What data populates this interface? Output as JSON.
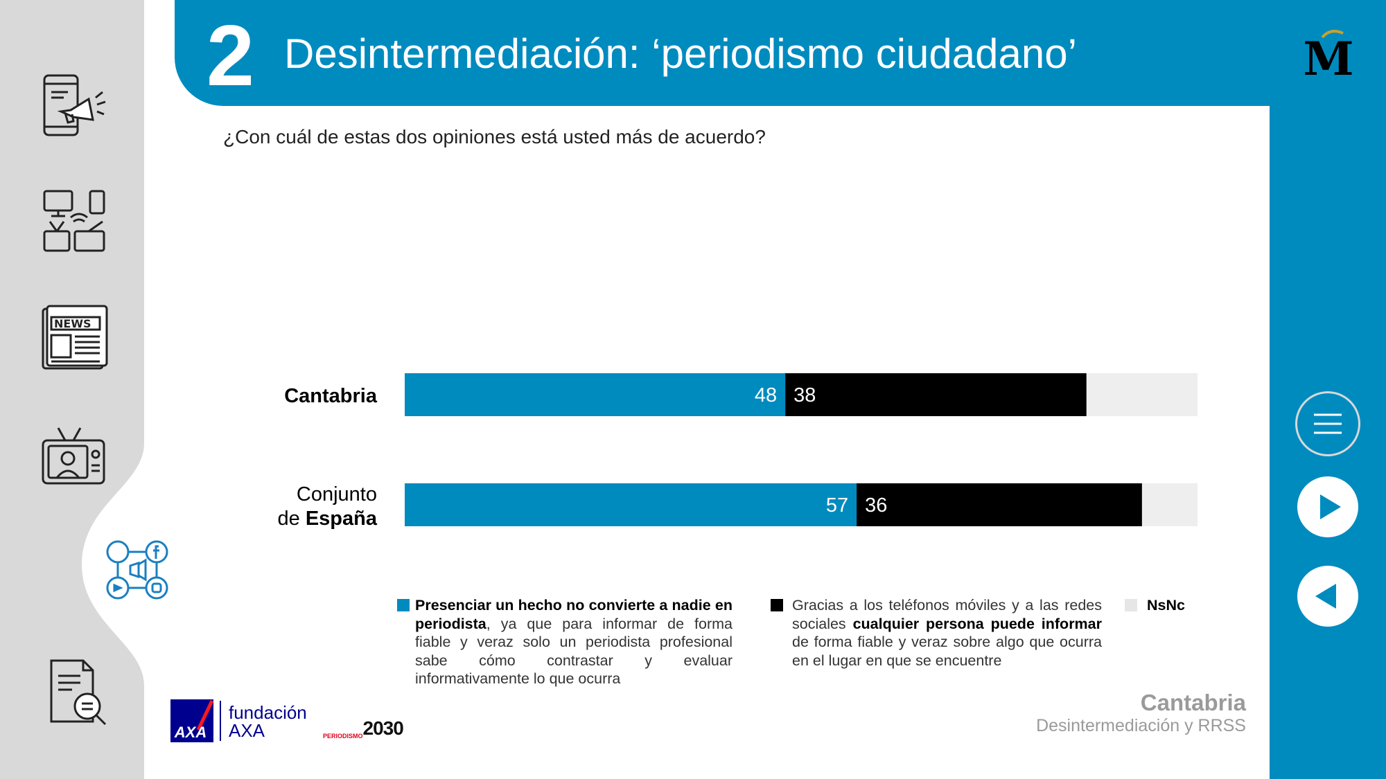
{
  "header": {
    "number": "2",
    "title": "Desintermediación: ‘periodismo ciudadano’"
  },
  "question": "¿Con cuál de estas dos opiniones está usted más de acuerdo?",
  "rows": [
    {
      "label_line1": "",
      "label_regular": "",
      "label_bold": "Cantabria"
    },
    {
      "label_line1": "Conjunto",
      "label_regular": "de ",
      "label_bold": "España"
    }
  ],
  "legend": [
    {
      "bold": "Presenciar un hecho no convierte a nadie en periodista",
      "rest": ", ya que para informar de forma fiable y veraz solo un periodista profesional sabe cómo contrastar y evaluar informativamente lo que ocurra"
    },
    {
      "pre": "Gracias a los teléfonos móviles y a las redes sociales ",
      "bold": "cualquier persona puede informar",
      "rest": " de forma fiable y veraz sobre algo que ocurra en el lugar en que se encuentre"
    },
    {
      "bold": "NsNc"
    }
  ],
  "footer": {
    "title": "Cantabria",
    "subtitle": "Desintermediación y RRSS",
    "brand_fundacion": "fundación",
    "brand_axa": "AXA",
    "brand_axa_logo": "AXA",
    "brand_periodismo": "PERIODISMO",
    "brand_2030": "2030",
    "logo_m": "M"
  },
  "colors": {
    "blue": "#008bbf",
    "black": "#000000",
    "nsnc": "#eeeeee",
    "panel_gray": "#d9d9d9"
  },
  "icons": [
    "phone-megaphone-icon",
    "devices-icon",
    "newspaper-icon",
    "tv-presenter-icon",
    "social-media-icon",
    "document-search-icon",
    "menu-icon",
    "next-icon",
    "previous-icon"
  ],
  "chart_data": {
    "type": "bar",
    "orientation": "horizontal-stacked-100",
    "categories": [
      "Cantabria",
      "Conjunto de España"
    ],
    "series": [
      {
        "name": "Presenciar un hecho no convierte a nadie en periodista",
        "values": [
          48,
          57
        ],
        "color": "#008bbf"
      },
      {
        "name": "Cualquier persona puede informar",
        "values": [
          38,
          36
        ],
        "color": "#000000"
      },
      {
        "name": "NsNc",
        "values": [
          14,
          7
        ],
        "color": "#eeeeee"
      }
    ],
    "data_labels_shown_for": [
      "series 0",
      "series 1"
    ],
    "xlim": [
      0,
      100
    ],
    "legend_position": "bottom",
    "grid": false
  }
}
